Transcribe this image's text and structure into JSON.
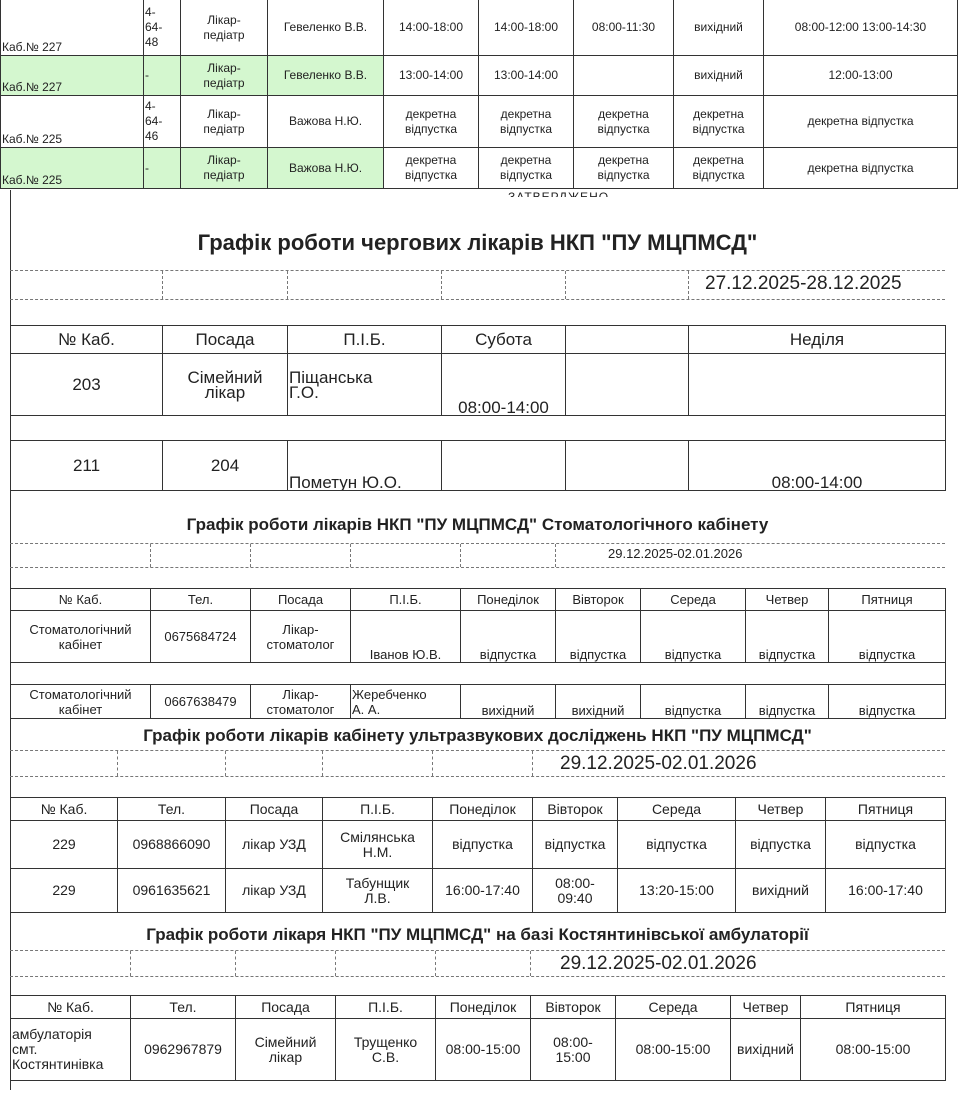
{
  "approved_label": "ЗАТВЕРДЖЕНО",
  "colors": {
    "highlight": "#d4f7cf"
  },
  "pediatric_table": {
    "rows": [
      [
        "Каб.№ 227",
        "4-\n64-\n48",
        "Лікар-\nпедіатр",
        "Гевеленко В.В.",
        "14:00-18:00",
        "14:00-18:00",
        "08:00-11:30",
        "вихідний",
        "08:00-12:00 13:00-14:30"
      ],
      [
        "Каб.№ 227",
        "-",
        "Лікар-\nпедіатр",
        "Гевеленко В.В.",
        "13:00-14:00",
        "13:00-14:00",
        "",
        "вихідний",
        "12:00-13:00"
      ],
      [
        "Каб.№ 225",
        "4-\n64-\n46",
        "Лікар-\nпедіатр",
        "Важова Н.Ю.",
        "декретна відпустка",
        "декретна відпустка",
        "декретна відпустка",
        "декретна відпустка",
        "декретна відпустка"
      ],
      [
        "Каб.№ 225",
        "-",
        "Лікар-\nпедіатр",
        "Важова Н.Ю.",
        "декретна відпустка",
        "декретна відпустка",
        "декретна відпустка",
        "декретна відпустка",
        "декретна відпустка"
      ]
    ]
  },
  "duty_schedule": {
    "title": "Графік роботи чергових лікарів НКП \"ПУ МЦПМСД\"",
    "period": "27.12.2025-28.12.2025",
    "headers": [
      "№ Каб.",
      "Посада",
      "П.І.Б.",
      "Субота",
      "",
      "Неділя"
    ],
    "rows": [
      [
        "203",
        "Сімейний\nлікар",
        "Піщанська\nГ.О.",
        "08:00-14:00",
        "",
        ""
      ],
      [
        "211",
        "204",
        "Пометун Ю.О.",
        "",
        "",
        "08:00-14:00"
      ]
    ]
  },
  "dental_schedule": {
    "title": "Графік роботи лікарів НКП \"ПУ МЦПМСД\" Стоматологічного кабінету",
    "period": "29.12.2025-02.01.2026",
    "headers": [
      "№ Каб.",
      "Тел.",
      "Посада",
      "П.І.Б.",
      "Понеділок",
      "Вівторок",
      "Середа",
      "Четвер",
      "Пятниця"
    ],
    "rows": [
      [
        "Стоматологічний\nкабінет",
        "0675684724",
        "Лікар-\nстоматолог",
        "Іванов Ю.В.",
        "відпустка",
        "відпустка",
        "відпустка",
        "відпустка",
        "відпустка"
      ],
      [
        "Стоматологічний\nкабінет",
        "0667638479",
        "Лікар-\nстоматолог",
        "Жеребченко\nА. А.",
        "вихідний",
        "вихідний",
        "відпустка",
        "відпустка",
        "відпустка"
      ]
    ]
  },
  "ultrasound_schedule": {
    "title": "Графік роботи лікарів кабінету ультразвукових досліджень НКП \"ПУ МЦПМСД\"",
    "period": "29.12.2025-02.01.2026",
    "headers": [
      "№ Каб.",
      "Тел.",
      "Посада",
      "П.І.Б.",
      "Понеділок",
      "Вівторок",
      "Середа",
      "Четвер",
      "Пятниця"
    ],
    "rows": [
      [
        "229",
        "0968866090",
        "лікар УЗД",
        "Смілянська\nН.М.",
        "відпустка",
        "відпустка",
        "відпустка",
        "відпустка",
        "відпустка"
      ],
      [
        "229",
        "0961635621",
        "лікар УЗД",
        "Табунщик\nЛ.В.",
        "16:00-17:40",
        "08:00-\n09:40",
        "13:20-15:00",
        "вихідний",
        "16:00-17:40"
      ]
    ]
  },
  "ambulatory_schedule": {
    "title": "Графік роботи лікаря НКП \"ПУ МЦПМСД\" на базі Костянтинівської амбулаторії",
    "period": "29.12.2025-02.01.2026",
    "headers": [
      "№ Каб.",
      "Тел.",
      "Посада",
      "П.І.Б.",
      "Понеділок",
      "Вівторок",
      "Середа",
      "Четвер",
      "Пятниця"
    ],
    "rows": [
      [
        "амбулаторія\nсмт.\nКостянтинівка",
        "0962967879",
        "Сімейний\nлікар",
        "Трущенко\nС.В.",
        "08:00-15:00",
        "08:00-\n15:00",
        "08:00-15:00",
        "вихідний",
        "08:00-15:00"
      ]
    ]
  }
}
